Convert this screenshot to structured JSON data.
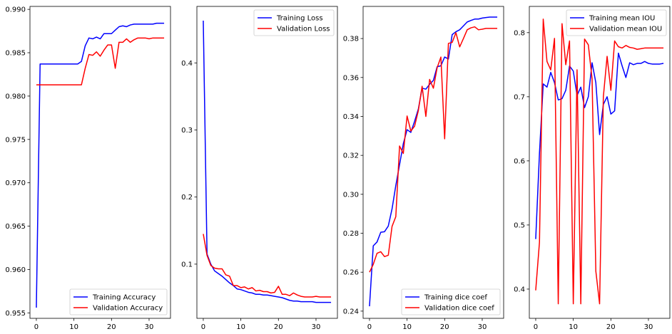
{
  "chart_data": [
    {
      "type": "line",
      "title": "",
      "xlabel": "",
      "ylabel": "",
      "xlim": [
        -1.7,
        35.7
      ],
      "ylim": [
        0.95437,
        0.99034
      ],
      "xticks": [
        0,
        10,
        20,
        30
      ],
      "xtick_labels": [
        "0",
        "10",
        "20",
        "30"
      ],
      "yticks": [
        0.955,
        0.96,
        0.965,
        0.97,
        0.975,
        0.98,
        0.985,
        0.99
      ],
      "ytick_labels": [
        "0.955",
        "0.960",
        "0.965",
        "0.970",
        "0.975",
        "0.980",
        "0.985",
        "0.990"
      ],
      "grid": false,
      "legend_location": "lower-right",
      "x": [
        0,
        1,
        2,
        3,
        4,
        5,
        6,
        7,
        8,
        9,
        10,
        11,
        12,
        13,
        14,
        15,
        16,
        17,
        18,
        19,
        20,
        21,
        22,
        23,
        24,
        25,
        26,
        27,
        28,
        29,
        30,
        31,
        32,
        33,
        34
      ],
      "series": [
        {
          "name": "Training Accuracy",
          "color": "#0000ff",
          "values": [
            0.9556,
            0.9837,
            0.9837,
            0.9837,
            0.9837,
            0.9837,
            0.9837,
            0.9837,
            0.9837,
            0.9837,
            0.9837,
            0.9837,
            0.984,
            0.9858,
            0.9867,
            0.9866,
            0.9868,
            0.9866,
            0.9872,
            0.9872,
            0.9872,
            0.9876,
            0.988,
            0.9881,
            0.988,
            0.9882,
            0.9883,
            0.9883,
            0.9883,
            0.9883,
            0.9883,
            0.9883,
            0.9884,
            0.9884,
            0.9884
          ]
        },
        {
          "name": "Validation Accuracy",
          "color": "#ff0000",
          "values": [
            0.9813,
            0.9813,
            0.9813,
            0.9813,
            0.9813,
            0.9813,
            0.9813,
            0.9813,
            0.9813,
            0.9813,
            0.9813,
            0.9813,
            0.9813,
            0.9832,
            0.9848,
            0.9847,
            0.9851,
            0.9846,
            0.9853,
            0.9859,
            0.9859,
            0.9832,
            0.9862,
            0.9862,
            0.9866,
            0.9862,
            0.9865,
            0.9867,
            0.9867,
            0.9867,
            0.9866,
            0.9867,
            0.9867,
            0.9867,
            0.9867
          ]
        }
      ]
    },
    {
      "type": "line",
      "title": "",
      "xlabel": "",
      "ylabel": "",
      "xlim": [
        -1.7,
        35.7
      ],
      "ylim": [
        0.0192,
        0.4842
      ],
      "xticks": [
        0,
        10,
        20,
        30
      ],
      "xtick_labels": [
        "0",
        "10",
        "20",
        "30"
      ],
      "yticks": [
        0.1,
        0.2,
        0.3,
        0.4
      ],
      "ytick_labels": [
        "0.1",
        "0.2",
        "0.3",
        "0.4"
      ],
      "grid": false,
      "legend_location": "upper-right",
      "x": [
        0,
        1,
        2,
        3,
        4,
        5,
        6,
        7,
        8,
        9,
        10,
        11,
        12,
        13,
        14,
        15,
        16,
        17,
        18,
        19,
        20,
        21,
        22,
        23,
        24,
        25,
        26,
        27,
        28,
        29,
        30,
        31,
        32,
        33,
        34
      ],
      "series": [
        {
          "name": "Training Loss",
          "color": "#0000ff",
          "values": [
            0.463,
            0.115,
            0.1,
            0.09,
            0.086,
            0.082,
            0.077,
            0.072,
            0.068,
            0.063,
            0.062,
            0.06,
            0.058,
            0.057,
            0.055,
            0.055,
            0.054,
            0.054,
            0.053,
            0.052,
            0.051,
            0.05,
            0.048,
            0.046,
            0.045,
            0.045,
            0.044,
            0.044,
            0.044,
            0.044,
            0.043,
            0.043,
            0.043,
            0.043,
            0.043
          ]
        },
        {
          "name": "Validation Loss",
          "color": "#ff0000",
          "values": [
            0.145,
            0.113,
            0.098,
            0.094,
            0.093,
            0.093,
            0.084,
            0.082,
            0.068,
            0.068,
            0.065,
            0.066,
            0.063,
            0.065,
            0.06,
            0.061,
            0.059,
            0.059,
            0.057,
            0.058,
            0.067,
            0.055,
            0.055,
            0.053,
            0.057,
            0.054,
            0.052,
            0.051,
            0.051,
            0.051,
            0.052,
            0.051,
            0.051,
            0.051,
            0.051
          ]
        }
      ]
    },
    {
      "type": "line",
      "title": "",
      "xlabel": "",
      "ylabel": "",
      "xlim": [
        -1.7,
        35.7
      ],
      "ylim": [
        0.2363,
        0.3965
      ],
      "xticks": [
        0,
        10,
        20,
        30
      ],
      "xtick_labels": [
        "0",
        "10",
        "20",
        "30"
      ],
      "yticks": [
        0.24,
        0.26,
        0.28,
        0.3,
        0.32,
        0.34,
        0.36,
        0.38
      ],
      "ytick_labels": [
        "0.24",
        "0.26",
        "0.28",
        "0.30",
        "0.32",
        "0.34",
        "0.36",
        "0.38"
      ],
      "grid": false,
      "legend_location": "lower-right",
      "x": [
        0,
        1,
        2,
        3,
        4,
        5,
        6,
        7,
        8,
        9,
        10,
        11,
        12,
        13,
        14,
        15,
        16,
        17,
        18,
        19,
        20,
        21,
        22,
        23,
        24,
        25,
        26,
        27,
        28,
        29,
        30,
        31,
        32,
        33,
        34
      ],
      "series": [
        {
          "name": "Training dice coef",
          "color": "#0000ff",
          "values": [
            0.2425,
            0.2735,
            0.2755,
            0.2805,
            0.2808,
            0.2837,
            0.2925,
            0.3045,
            0.3152,
            0.326,
            0.3332,
            0.3318,
            0.3375,
            0.3438,
            0.3545,
            0.354,
            0.3565,
            0.3585,
            0.3655,
            0.366,
            0.3705,
            0.3695,
            0.382,
            0.3835,
            0.3845,
            0.3865,
            0.3885,
            0.3893,
            0.39,
            0.39,
            0.3905,
            0.3908,
            0.391,
            0.391,
            0.391
          ]
        },
        {
          "name": "Validation dice coef",
          "color": "#ff0000",
          "values": [
            0.26,
            0.264,
            0.2697,
            0.2705,
            0.268,
            0.2687,
            0.2835,
            0.2885,
            0.3248,
            0.321,
            0.3402,
            0.3325,
            0.335,
            0.343,
            0.3555,
            0.34,
            0.359,
            0.3545,
            0.365,
            0.3705,
            0.3285,
            0.3775,
            0.378,
            0.383,
            0.3757,
            0.38,
            0.3845,
            0.3855,
            0.386,
            0.3845,
            0.3848,
            0.3852,
            0.3852,
            0.3852,
            0.3852
          ]
        }
      ]
    },
    {
      "type": "line",
      "title": "",
      "xlabel": "",
      "ylabel": "",
      "xlim": [
        -1.7,
        35.7
      ],
      "ylim": [
        0.3544,
        0.8409
      ],
      "xticks": [
        0,
        10,
        20,
        30
      ],
      "xtick_labels": [
        "0",
        "10",
        "20",
        "30"
      ],
      "yticks": [
        0.4,
        0.5,
        0.6,
        0.7,
        0.8
      ],
      "ytick_labels": [
        "0.4",
        "0.5",
        "0.6",
        "0.7",
        "0.8"
      ],
      "grid": false,
      "legend_location": "upper-right",
      "x": [
        0,
        1,
        2,
        3,
        4,
        5,
        6,
        7,
        8,
        9,
        10,
        11,
        12,
        13,
        14,
        15,
        16,
        17,
        18,
        19,
        20,
        21,
        22,
        23,
        24,
        25,
        26,
        27,
        28,
        29,
        30,
        31,
        32,
        33,
        34
      ],
      "series": [
        {
          "name": "Training mean IOU",
          "color": "#0000ff",
          "values": [
            0.478,
            0.612,
            0.72,
            0.715,
            0.738,
            0.722,
            0.695,
            0.697,
            0.71,
            0.748,
            0.74,
            0.702,
            0.715,
            0.683,
            0.7,
            0.753,
            0.722,
            0.641,
            0.688,
            0.7,
            0.673,
            0.678,
            0.768,
            0.748,
            0.73,
            0.753,
            0.75,
            0.752,
            0.752,
            0.755,
            0.752,
            0.751,
            0.751,
            0.751,
            0.752
          ]
        },
        {
          "name": "Validation mean IOU",
          "color": "#ff0000",
          "values": [
            0.398,
            0.473,
            0.821,
            0.755,
            0.742,
            0.791,
            0.377,
            0.814,
            0.75,
            0.787,
            0.377,
            0.742,
            0.377,
            0.79,
            0.781,
            0.728,
            0.428,
            0.377,
            0.7,
            0.763,
            0.71,
            0.787,
            0.778,
            0.776,
            0.78,
            0.777,
            0.776,
            0.774,
            0.775,
            0.776,
            0.776,
            0.776,
            0.776,
            0.776,
            0.776
          ]
        }
      ]
    }
  ]
}
